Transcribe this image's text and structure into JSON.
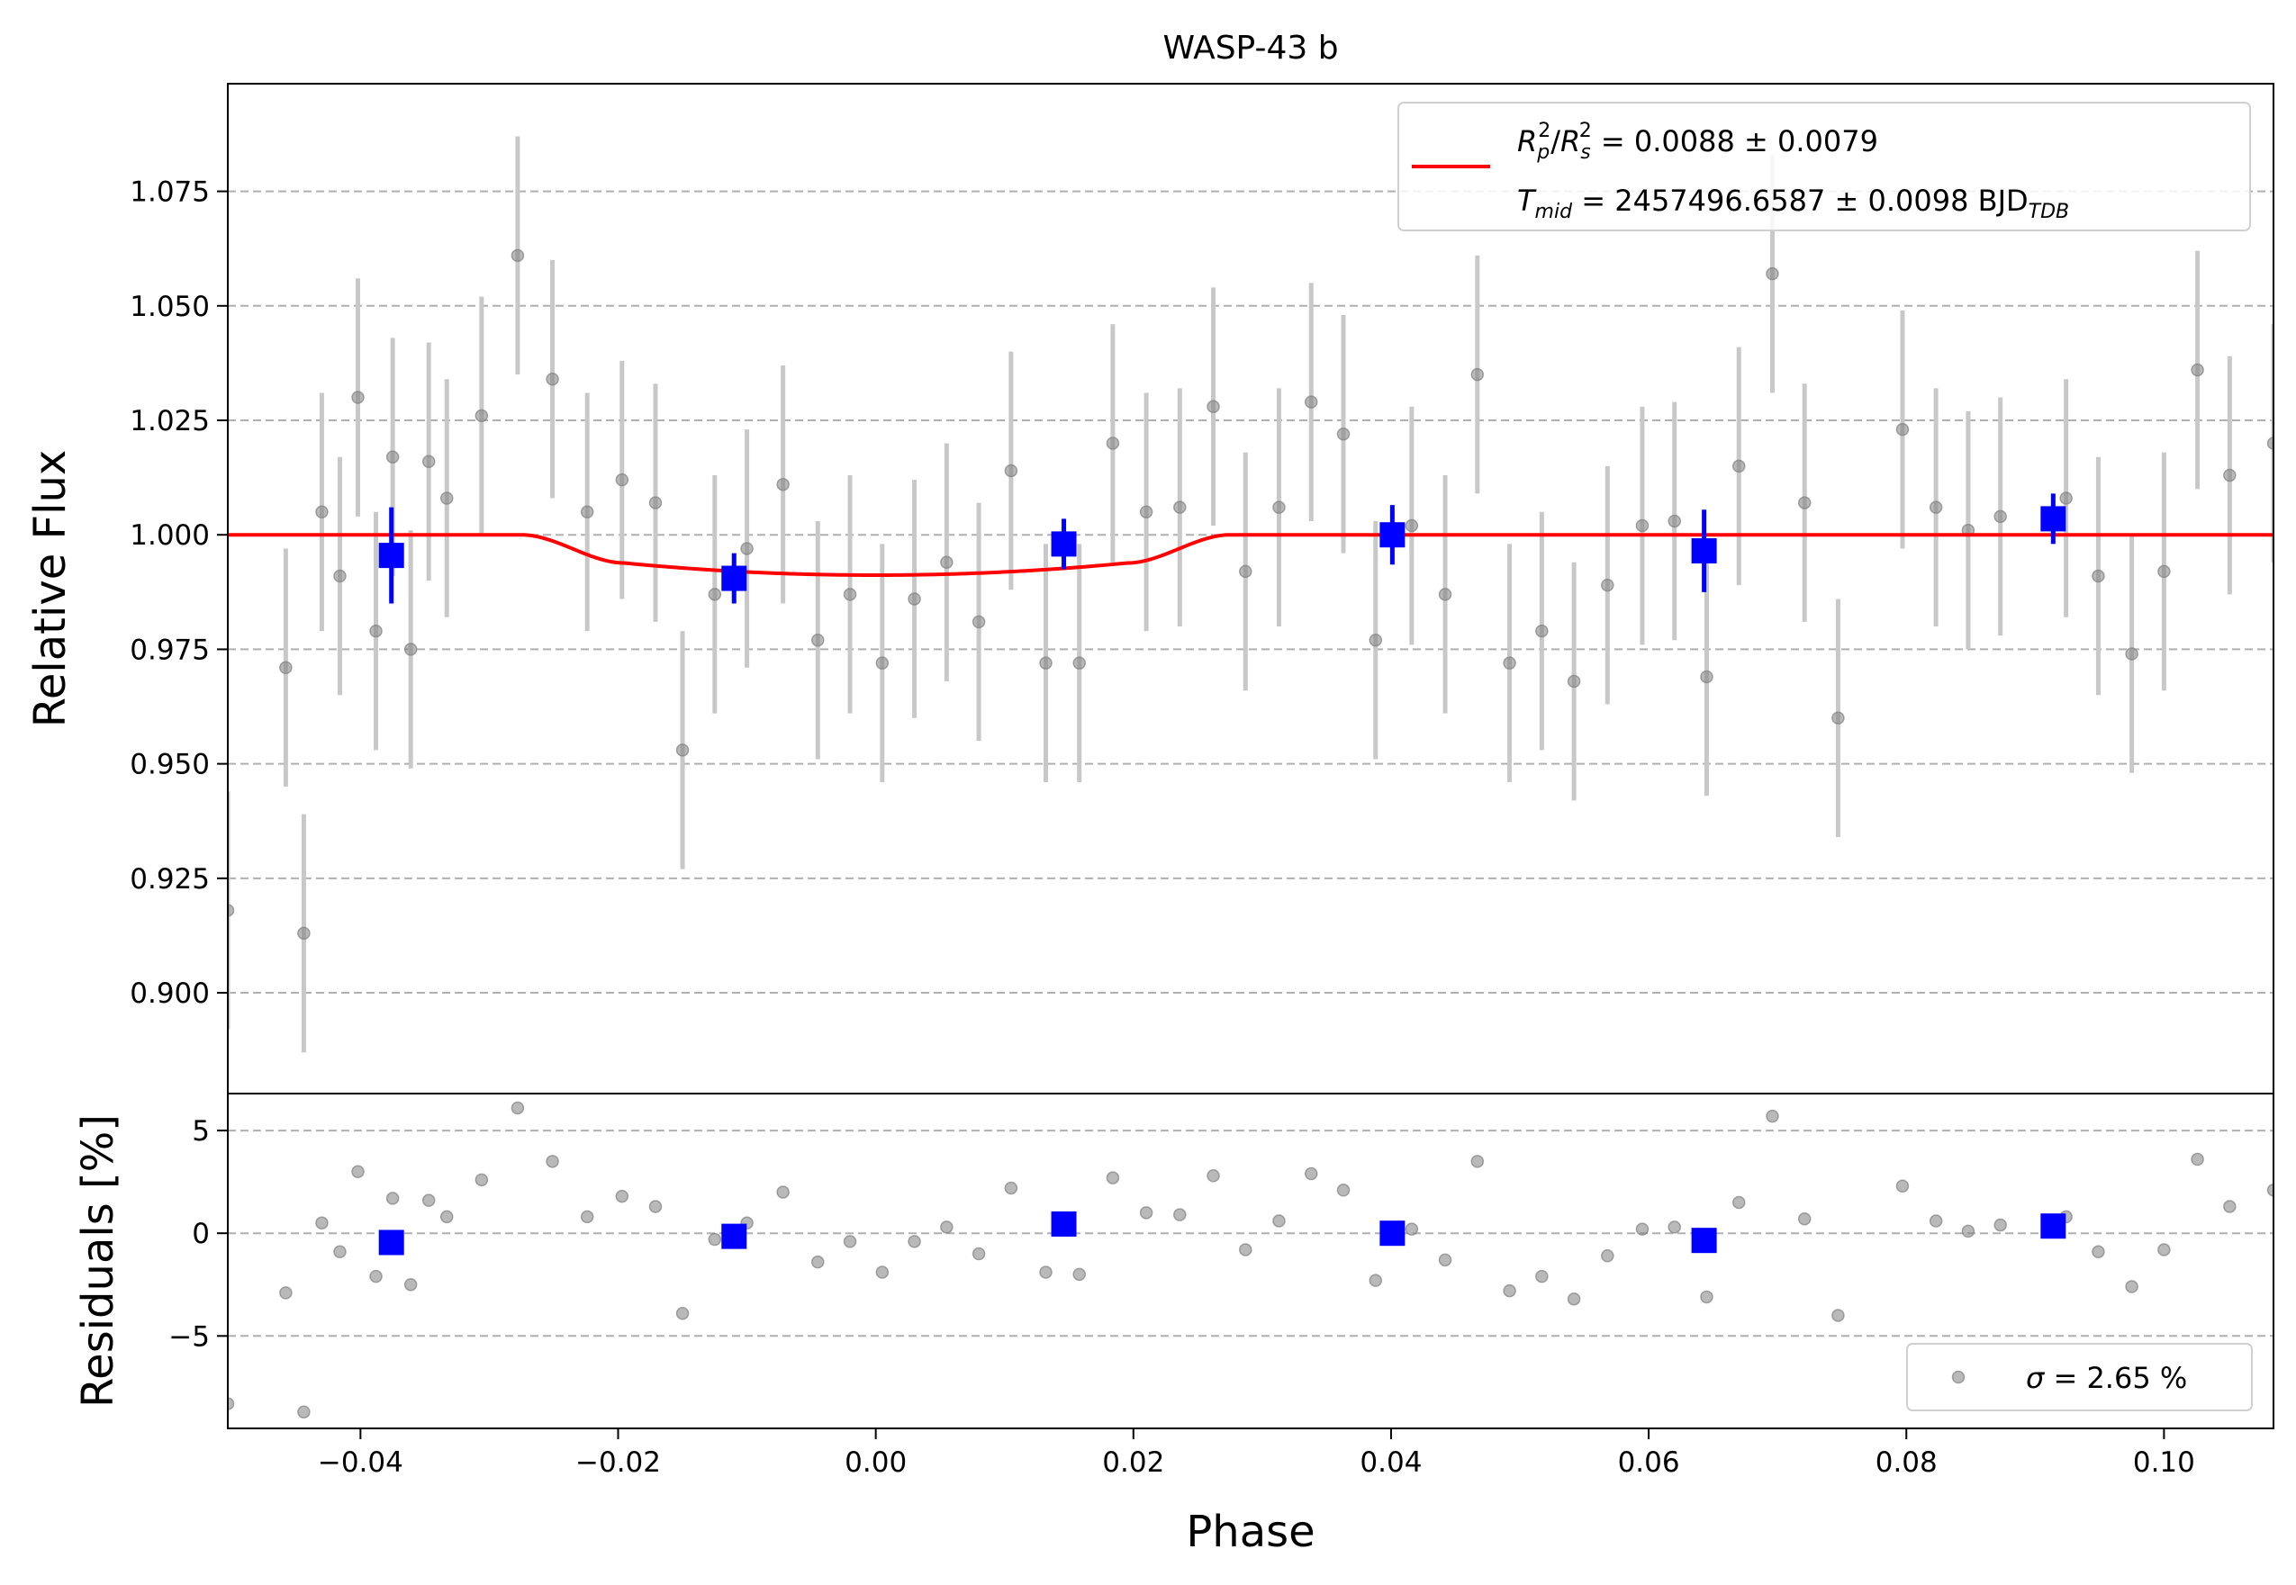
{
  "chart_data": {
    "type": "scatter",
    "title": "WASP-43 b",
    "xlabel": "Phase",
    "xlim": [
      -0.0503,
      0.1085
    ],
    "xticks": [
      -0.04,
      -0.02,
      0.0,
      0.02,
      0.04,
      0.06,
      0.08,
      0.1
    ],
    "xtick_labels": [
      "−0.04",
      "−0.02",
      "0.00",
      "0.02",
      "0.04",
      "0.06",
      "0.08",
      "0.10"
    ],
    "colors": {
      "raw": "#808080",
      "binned": "#0000ff",
      "model": "#ff0000",
      "grid": "#b0b0b0"
    },
    "main_panel": {
      "ylabel": "Relative Flux",
      "ylim": [
        0.878,
        1.0985
      ],
      "yticks": [
        0.9,
        0.925,
        0.95,
        0.975,
        1.0,
        1.025,
        1.05,
        1.075
      ],
      "ytick_labels": [
        "0.900",
        "0.925",
        "0.950",
        "0.975",
        "1.000",
        "1.025",
        "1.050",
        "1.075"
      ],
      "grid": "horizontal dashed",
      "raw_points": {
        "x": [
          -0.0503,
          -0.0458,
          -0.0444,
          -0.043,
          -0.0416,
          -0.0402,
          -0.0388,
          -0.0375,
          -0.0361,
          -0.0347,
          -0.0333,
          -0.0306,
          -0.0278,
          -0.0251,
          -0.0224,
          -0.0197,
          -0.0171,
          -0.015,
          -0.0125,
          -0.01,
          -0.0072,
          -0.0045,
          -0.002,
          0.0005,
          0.003,
          0.0055,
          0.008,
          0.0105,
          0.0132,
          0.0158,
          0.0184,
          0.021,
          0.0236,
          0.0262,
          0.0287,
          0.0313,
          0.0338,
          0.0363,
          0.0388,
          0.0416,
          0.0442,
          0.0467,
          0.0492,
          0.0517,
          0.0542,
          0.0568,
          0.0595,
          0.062,
          0.0645,
          0.067,
          0.0696,
          0.0721,
          0.0747,
          0.0797,
          0.0823,
          0.0848,
          0.0873,
          0.0924,
          0.0949,
          0.0975,
          0.1,
          0.1026,
          0.1051,
          0.1085
        ],
        "y": [
          0.918,
          0.971,
          0.913,
          1.005,
          0.991,
          1.03,
          0.979,
          1.017,
          0.975,
          1.016,
          1.008,
          1.026,
          1.061,
          1.034,
          1.005,
          1.012,
          1.007,
          0.953,
          0.987,
          0.997,
          1.011,
          0.977,
          0.987,
          0.972,
          0.986,
          0.994,
          0.981,
          1.014,
          0.972,
          0.972,
          1.02,
          1.005,
          1.006,
          1.028,
          0.992,
          1.006,
          1.029,
          1.022,
          0.977,
          1.002,
          0.987,
          1.035,
          0.972,
          0.979,
          0.968,
          0.989,
          1.002,
          1.003,
          0.969,
          1.015,
          1.057,
          1.007,
          0.96,
          1.023,
          1.006,
          1.001,
          1.004,
          1.008,
          0.991,
          0.974,
          0.992,
          1.036,
          1.013,
          1.02
        ],
        "yerr": 0.026
      },
      "binned_points": {
        "x": [
          -0.0376,
          -0.011,
          0.0146,
          0.0401,
          0.0643,
          0.0914
        ],
        "y": [
          0.9955,
          0.9905,
          0.998,
          1.0,
          0.9965,
          1.0035
        ],
        "yerr": [
          0.0105,
          0.0055,
          0.0055,
          0.0065,
          0.009,
          0.0055
        ]
      },
      "model": {
        "rp2_rs2": 0.0088,
        "t14_phase": 0.055,
        "t12_phase": 0.008,
        "x_range": [
          -0.0503,
          0.1085
        ]
      },
      "legend": {
        "placement": "upper right",
        "line1": {
          "sym1": "R",
          "sub1": "p",
          "sup1": "2",
          "sep": "/",
          "sym2": "R",
          "sub2": "s",
          "sup2": "2",
          "value": " = 0.0088 ± 0.0079"
        },
        "line2": {
          "sym": "T",
          "sub": "mid",
          "value": " = 2457496.6587 ± 0.0098 BJD",
          "unit_sub": "TDB"
        }
      }
    },
    "residual_panel": {
      "ylabel": "Residuals [%]",
      "ylim": [
        -9.5,
        6.8
      ],
      "yticks": [
        -5,
        0,
        5
      ],
      "ytick_labels": [
        "−5",
        "0",
        "5"
      ],
      "grid": "horizontal dashed",
      "raw_points": {
        "x": [
          -0.0503,
          -0.0458,
          -0.0444,
          -0.043,
          -0.0416,
          -0.0402,
          -0.0388,
          -0.0375,
          -0.0361,
          -0.0347,
          -0.0333,
          -0.0306,
          -0.0278,
          -0.0251,
          -0.0224,
          -0.0197,
          -0.0171,
          -0.015,
          -0.0125,
          -0.01,
          -0.0072,
          -0.0045,
          -0.002,
          0.0005,
          0.003,
          0.0055,
          0.008,
          0.0105,
          0.0132,
          0.0158,
          0.0184,
          0.021,
          0.0236,
          0.0262,
          0.0287,
          0.0313,
          0.0338,
          0.0363,
          0.0388,
          0.0416,
          0.0442,
          0.0467,
          0.0492,
          0.0517,
          0.0542,
          0.0568,
          0.0595,
          0.062,
          0.0645,
          0.067,
          0.0696,
          0.0721,
          0.0747,
          0.0797,
          0.0823,
          0.0848,
          0.0873,
          0.0924,
          0.0949,
          0.0975,
          0.1,
          0.1026,
          0.1051,
          0.1085
        ],
        "y": [
          -8.3,
          -2.9,
          -8.7,
          0.5,
          -0.9,
          3.0,
          -2.1,
          1.7,
          -2.5,
          1.6,
          0.8,
          2.6,
          6.1,
          3.5,
          0.8,
          1.8,
          1.3,
          -3.9,
          -0.3,
          0.5,
          2.0,
          -1.4,
          -0.4,
          -1.9,
          -0.4,
          0.3,
          -1.0,
          2.2,
          -1.9,
          -2.0,
          2.7,
          1.0,
          0.9,
          2.8,
          -0.8,
          0.6,
          2.9,
          2.1,
          -2.3,
          0.2,
          -1.3,
          3.5,
          -2.8,
          -2.1,
          -3.2,
          -1.1,
          0.2,
          0.3,
          -3.1,
          1.5,
          5.7,
          0.7,
          -4.0,
          2.3,
          0.6,
          0.1,
          0.4,
          0.8,
          -0.9,
          -2.6,
          -0.8,
          3.6,
          1.3,
          2.1
        ]
      },
      "binned_points": {
        "x": [
          -0.0376,
          -0.011,
          0.0146,
          0.0401,
          0.0643,
          0.0914
        ],
        "y": [
          -0.45,
          -0.15,
          0.45,
          0.0,
          -0.35,
          0.35
        ]
      },
      "legend": {
        "placement": "lower right",
        "sigma_symbol": "σ",
        "text": " = 2.65 %"
      }
    }
  }
}
